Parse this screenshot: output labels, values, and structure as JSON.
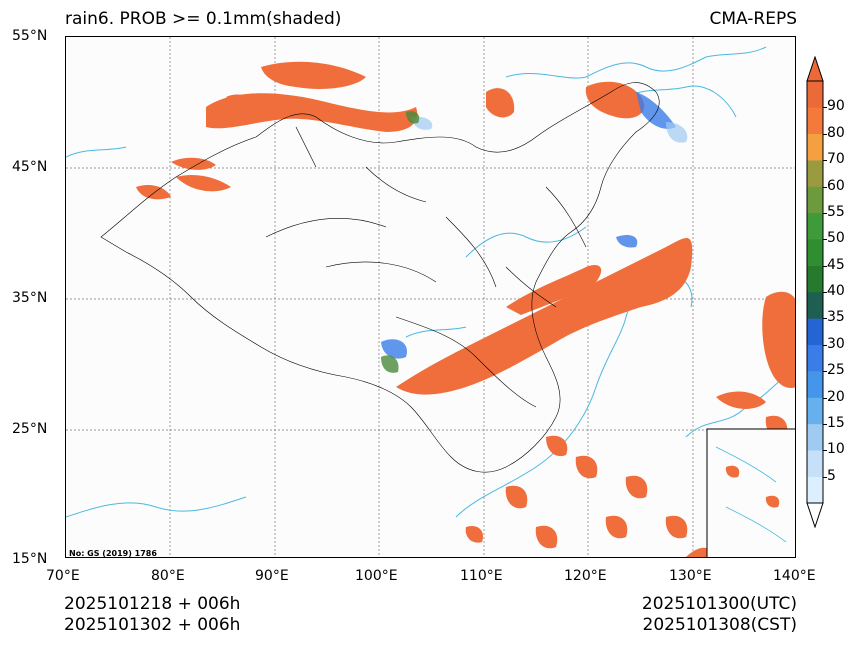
{
  "title_left": "rain6. PROB >= 0.1mm(shaded)",
  "title_right": "CMA-REPS",
  "stamp": "No: GS (2019) 1786",
  "lat_labels": [
    "55°N",
    "45°N",
    "35°N",
    "25°N",
    "15°N"
  ],
  "lon_labels": [
    "70°E",
    "80°E",
    "90°E",
    "100°E",
    "110°E",
    "120°E",
    "130°E",
    "140°E"
  ],
  "time_left": [
    "2025101218  +  006h",
    "2025101302  +  006h"
  ],
  "time_right": [
    "2025101300(UTC)",
    "2025101308(CST)"
  ],
  "colorbar": {
    "levels": [
      "5",
      "10",
      "15",
      "20",
      "25",
      "30",
      "35",
      "40",
      "45",
      "50",
      "55",
      "60",
      "70",
      "80",
      "90"
    ],
    "colors": [
      "#ddeeff",
      "#c6e0fa",
      "#9fcbf2",
      "#67b0ee",
      "#4595ea",
      "#3a7ce8",
      "#2464d4",
      "#1e5f52",
      "#267a2e",
      "#2e8e30",
      "#3f9a3a",
      "#6c9a3c",
      "#9a9a40",
      "#f5a040",
      "#f47a3c",
      "#ec6a3a"
    ],
    "over_color": "#ec6a3a",
    "under_color": "#ffffff"
  },
  "colors": {
    "shade_main": "#f06e3c",
    "shade_edge": "#4a8a3a",
    "shade_blue": "#3a7ce8",
    "coast": "#4ab8e0",
    "border": "#000000"
  }
}
